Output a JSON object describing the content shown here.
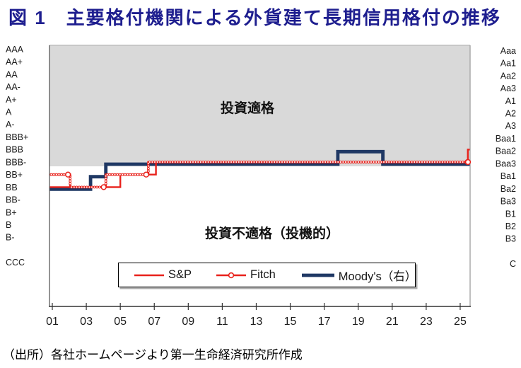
{
  "title": "図 1　主要格付機関による外貨建て長期信用格付の推移",
  "source_note": "（出所）各社ホームページより第一生命経済研究所作成",
  "colors": {
    "title_text": "#1e1e8f",
    "red_line": "#e8221c",
    "navy_line": "#1f3864",
    "investment_region_fill": "#d9d9d9",
    "axis_line": "#333333",
    "plot_border": "#a6a6a6",
    "label_text": "#1a1a1a"
  },
  "chart_data": {
    "type": "line",
    "subtype": "step",
    "title": "主要格付機関による外貨建て長期信用格付の推移",
    "x_axis": {
      "tick_labels": [
        "01",
        "03",
        "05",
        "07",
        "09",
        "11",
        "13",
        "15",
        "17",
        "19",
        "21",
        "23",
        "25"
      ],
      "tick_years": [
        2001,
        2003,
        2005,
        2007,
        2009,
        2011,
        2013,
        2015,
        2017,
        2019,
        2021,
        2023,
        2025
      ],
      "range_years": [
        2001,
        2025.6
      ]
    },
    "y_axis_left": {
      "agency": "S&P / Fitch",
      "scale": [
        "AAA",
        "AA+",
        "AA",
        "AA-",
        "A+",
        "A",
        "A-",
        "BBB+",
        "BBB",
        "BBB-",
        "BB+",
        "BB",
        "BB-",
        "B+",
        "B",
        "B-",
        "",
        "CCC"
      ]
    },
    "y_axis_right": {
      "agency": "Moody's",
      "scale": [
        "Aaa",
        "Aa1",
        "Aa2",
        "Aa3",
        "A1",
        "A2",
        "A3",
        "Baa1",
        "Baa2",
        "Baa3",
        "Ba1",
        "Ba2",
        "Ba3",
        "B1",
        "B2",
        "B3",
        "",
        "C"
      ]
    },
    "regions": [
      {
        "name": "investment_grade",
        "label": "投資適格",
        "boundary_rating": "BBB-"
      },
      {
        "name": "speculative_grade",
        "label": "投資不適格（投機的）"
      }
    ],
    "series": [
      {
        "name": "S&P",
        "axis": "left",
        "style": "line",
        "steps": [
          [
            2000.85,
            "BB"
          ],
          [
            2005.0,
            "BB+"
          ],
          [
            2007.1,
            "BBB-"
          ],
          [
            2025.45,
            "BBB"
          ]
        ],
        "end_year": 2025.62
      },
      {
        "name": "Fitch",
        "axis": "left",
        "style": "line-circles",
        "steps": [
          [
            2000.85,
            "BB+"
          ],
          [
            2002.05,
            "BB"
          ],
          [
            2004.15,
            "BB+"
          ],
          [
            2006.65,
            "BBB-"
          ]
        ],
        "end_year": 2025.62
      },
      {
        "name": "Moody's",
        "axis": "right",
        "style": "thick-line",
        "steps": [
          [
            2000.85,
            "Ba2"
          ],
          [
            2003.25,
            "Ba1"
          ],
          [
            2004.15,
            "Baa3"
          ],
          [
            2017.8,
            "Baa2"
          ],
          [
            2020.45,
            "Baa3"
          ]
        ],
        "end_year": 2025.62
      }
    ],
    "legend": [
      {
        "label": "S&P"
      },
      {
        "label": "Fitch"
      },
      {
        "label": "Moody's（右）"
      }
    ]
  }
}
